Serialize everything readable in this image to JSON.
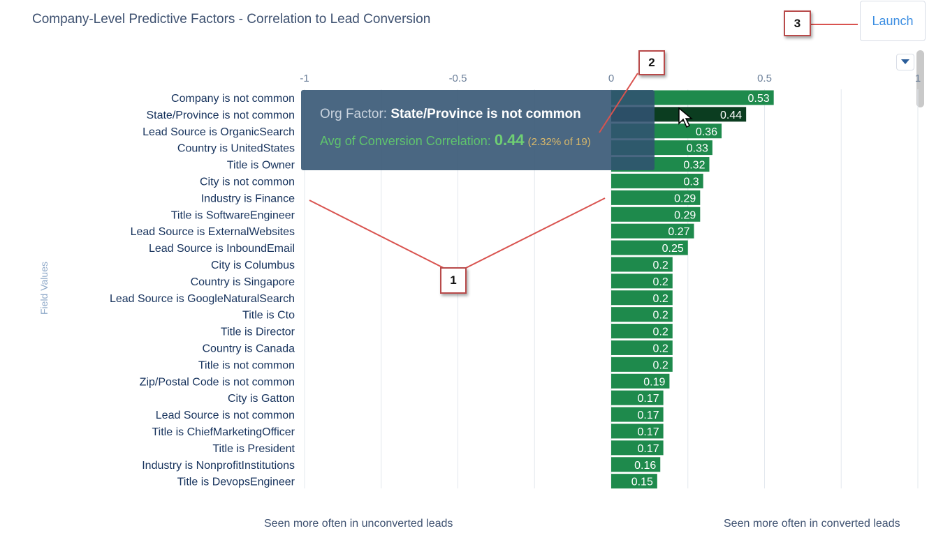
{
  "title": "Company-Level Predictive Factors - Correlation to Lead Conversion",
  "launch_label": "Launch",
  "dropdown_icon": "caret-down-icon",
  "chart_data": {
    "type": "bar",
    "orientation": "horizontal",
    "ylabel": "Field Values",
    "xlim": [
      -1,
      1
    ],
    "x_ticks": [
      "-1",
      "-0.5",
      "0",
      "0.5",
      "1"
    ],
    "x_tick_values": [
      -1,
      -0.5,
      0,
      0.5,
      1
    ],
    "bar_color": "#1e8a4c",
    "highlight_color": "#0b3d20",
    "highlight_index": 1,
    "categories": [
      "Company is not common",
      "State/Province is not common",
      "Lead Source is OrganicSearch",
      "Country is UnitedStates",
      "Title is Owner",
      "City is not common",
      "Industry is Finance",
      "Title is SoftwareEngineer",
      "Lead Source is ExternalWebsites",
      "Lead Source is InboundEmail",
      "City is Columbus",
      "Country is Singapore",
      "Lead Source is GoogleNaturalSearch",
      "Title is Cto",
      "Title is Director",
      "Country is Canada",
      "Title is not common",
      "Zip/Postal Code is not common",
      "City is Gatton",
      "Lead Source is not common",
      "Title is ChiefMarketingOfficer",
      "Title is President",
      "Industry is NonprofitInstitutions",
      "Title is DevopsEngineer"
    ],
    "values": [
      0.53,
      0.44,
      0.36,
      0.33,
      0.32,
      0.3,
      0.29,
      0.29,
      0.27,
      0.25,
      0.2,
      0.2,
      0.2,
      0.2,
      0.2,
      0.2,
      0.2,
      0.19,
      0.17,
      0.17,
      0.17,
      0.17,
      0.16,
      0.15
    ],
    "value_labels": [
      "0.53",
      "0.44",
      "0.36",
      "0.33",
      "0.32",
      "0.3",
      "0.29",
      "0.29",
      "0.27",
      "0.25",
      "0.2",
      "0.2",
      "0.2",
      "0.2",
      "0.2",
      "0.2",
      "0.2",
      "0.19",
      "0.17",
      "0.17",
      "0.17",
      "0.17",
      "0.16",
      "0.15"
    ]
  },
  "tooltip": {
    "factor_prefix": "Org Factor:",
    "factor_name": "State/Province is not common",
    "metric_prefix": "Avg of Conversion Correlation:",
    "metric_value": "0.44",
    "metric_extra": "(2.32% of 19)"
  },
  "footer": {
    "left": "Seen more often in unconverted leads",
    "right": "Seen more often in converted leads"
  },
  "callouts": [
    "1",
    "2",
    "3"
  ]
}
